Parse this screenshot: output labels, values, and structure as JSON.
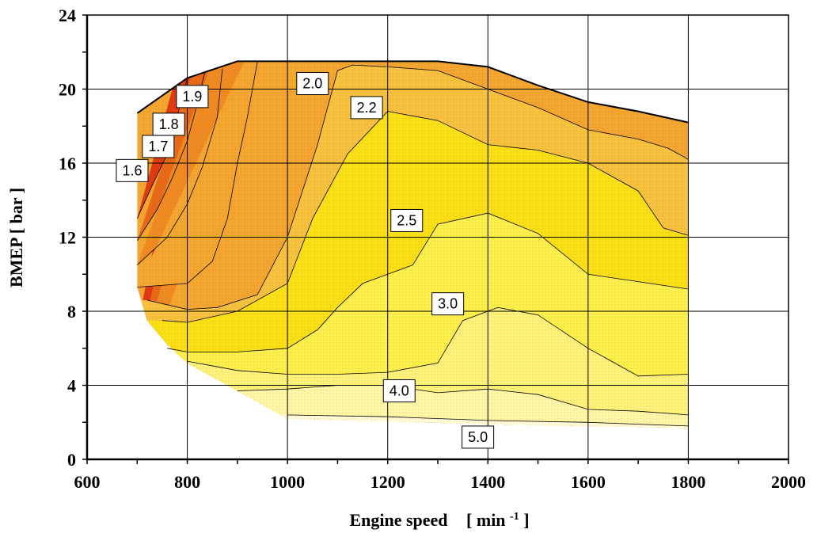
{
  "chart_data": {
    "type": "contour",
    "xlabel_main": "Engine speed",
    "xlabel_unit": "[ min",
    "xlabel_sup": "-1",
    "xlabel_close": " ]",
    "ylabel": "BMEP   [ bar ]",
    "xlim": [
      600,
      2000
    ],
    "ylim": [
      0,
      24
    ],
    "x_ticks": [
      "600",
      "800",
      "1000",
      "1200",
      "1400",
      "1600",
      "1800",
      "2000"
    ],
    "y_ticks": [
      "0",
      "4",
      "8",
      "12",
      "16",
      "20",
      "24"
    ],
    "grid": true,
    "full_load_curve": [
      [
        700,
        18.7
      ],
      [
        800,
        20.6
      ],
      [
        900,
        21.5
      ],
      [
        1000,
        21.5
      ],
      [
        1100,
        21.5
      ],
      [
        1200,
        21.5
      ],
      [
        1300,
        21.5
      ],
      [
        1400,
        21.2
      ],
      [
        1500,
        20.2
      ],
      [
        1600,
        19.3
      ],
      [
        1700,
        18.8
      ],
      [
        1800,
        18.2
      ]
    ],
    "boundary_bottom": [
      [
        1800,
        1.7
      ],
      [
        1400,
        1.9
      ],
      [
        1000,
        2.2
      ],
      [
        900,
        3.7
      ],
      [
        800,
        5.2
      ],
      [
        760,
        6.2
      ],
      [
        720,
        7.5
      ],
      [
        700,
        9.3
      ]
    ],
    "contours": [
      {
        "level": "1.6",
        "color": "#e03a12",
        "label_pos": [
          690,
          15.6
        ],
        "points": [
          [
            700,
            13.0
          ],
          [
            730,
            14.8
          ],
          [
            760,
            16.5
          ],
          [
            780,
            18.5
          ],
          [
            800,
            20.6
          ]
        ]
      },
      {
        "level": "1.7",
        "color": "#e86a18",
        "label_pos": [
          742,
          16.9
        ],
        "points": [
          [
            700,
            11.8
          ],
          [
            740,
            13.5
          ],
          [
            770,
            15.2
          ],
          [
            800,
            17.2
          ],
          [
            820,
            19.2
          ],
          [
            835,
            20.9
          ]
        ]
      },
      {
        "level": "1.8",
        "color": "#f08a22",
        "label_pos": [
          763,
          18.1
        ],
        "points": [
          [
            700,
            10.5
          ],
          [
            760,
            12.0
          ],
          [
            800,
            13.8
          ],
          [
            830,
            15.8
          ],
          [
            860,
            18.5
          ],
          [
            870,
            21.1
          ]
        ]
      },
      {
        "level": "1.9",
        "color": "#f4a630",
        "label_pos": [
          810,
          19.6
        ],
        "points": [
          [
            700,
            9.3
          ],
          [
            800,
            9.5
          ],
          [
            850,
            10.7
          ],
          [
            880,
            13.0
          ],
          [
            900,
            16.0
          ],
          [
            920,
            18.5
          ],
          [
            940,
            21.5
          ]
        ]
      },
      {
        "level": "2.0",
        "color": "#f8c23e",
        "label_pos": [
          1050,
          20.3
        ],
        "points": [
          [
            720,
            8.6
          ],
          [
            800,
            8.1
          ],
          [
            860,
            8.2
          ],
          [
            940,
            8.9
          ],
          [
            1000,
            12.0
          ],
          [
            1060,
            17.0
          ],
          [
            1100,
            21.0
          ],
          [
            1130,
            21.3
          ],
          [
            1200,
            21.2
          ],
          [
            1300,
            21.0
          ],
          [
            1400,
            20.0
          ],
          [
            1500,
            19.0
          ],
          [
            1600,
            17.8
          ],
          [
            1700,
            17.3
          ],
          [
            1760,
            16.8
          ],
          [
            1800,
            16.2
          ]
        ]
      },
      {
        "level": "2.2",
        "color": "#fbe018",
        "label_pos": [
          1158,
          19.0
        ],
        "points": [
          [
            750,
            7.5
          ],
          [
            800,
            7.4
          ],
          [
            900,
            8.0
          ],
          [
            1000,
            9.5
          ],
          [
            1050,
            13.0
          ],
          [
            1120,
            16.5
          ],
          [
            1200,
            18.8
          ],
          [
            1300,
            18.3
          ],
          [
            1400,
            17.0
          ],
          [
            1500,
            16.7
          ],
          [
            1600,
            16.0
          ],
          [
            1700,
            14.5
          ],
          [
            1750,
            12.5
          ],
          [
            1800,
            12.1
          ]
        ]
      },
      {
        "level": "2.5",
        "color": "#fdf04c",
        "label_pos": [
          1238,
          12.9
        ],
        "points": [
          [
            760,
            6.0
          ],
          [
            800,
            5.8
          ],
          [
            900,
            5.8
          ],
          [
            1000,
            6.0
          ],
          [
            1060,
            7.0
          ],
          [
            1100,
            8.2
          ],
          [
            1150,
            9.5
          ],
          [
            1200,
            10.0
          ],
          [
            1250,
            10.5
          ],
          [
            1300,
            12.7
          ],
          [
            1400,
            13.3
          ],
          [
            1500,
            12.2
          ],
          [
            1600,
            10.0
          ],
          [
            1700,
            9.6
          ],
          [
            1800,
            9.2
          ]
        ]
      },
      {
        "level": "3.0",
        "color": "#fef27a",
        "label_pos": [
          1320,
          8.4
        ],
        "points": [
          [
            800,
            5.3
          ],
          [
            900,
            4.8
          ],
          [
            1000,
            4.6
          ],
          [
            1100,
            4.6
          ],
          [
            1200,
            4.7
          ],
          [
            1300,
            5.2
          ],
          [
            1350,
            7.5
          ],
          [
            1420,
            8.2
          ],
          [
            1500,
            7.8
          ],
          [
            1600,
            6.0
          ],
          [
            1700,
            4.5
          ],
          [
            1800,
            4.6
          ]
        ]
      },
      {
        "level": "4.0",
        "color": "#fff6a8",
        "label_pos": [
          1223,
          3.7
        ],
        "points": [
          [
            900,
            3.7
          ],
          [
            1000,
            3.8
          ],
          [
            1100,
            4.0
          ],
          [
            1200,
            4.0
          ],
          [
            1300,
            3.6
          ],
          [
            1400,
            3.8
          ],
          [
            1500,
            3.5
          ],
          [
            1600,
            2.7
          ],
          [
            1700,
            2.6
          ],
          [
            1800,
            2.4
          ]
        ]
      },
      {
        "level": "5.0",
        "color": "#fffbd8",
        "label_pos": [
          1380,
          1.2
        ],
        "points": [
          [
            1000,
            2.4
          ],
          [
            1200,
            2.3
          ],
          [
            1400,
            2.1
          ],
          [
            1600,
            2.0
          ],
          [
            1800,
            1.8
          ]
        ]
      }
    ]
  }
}
